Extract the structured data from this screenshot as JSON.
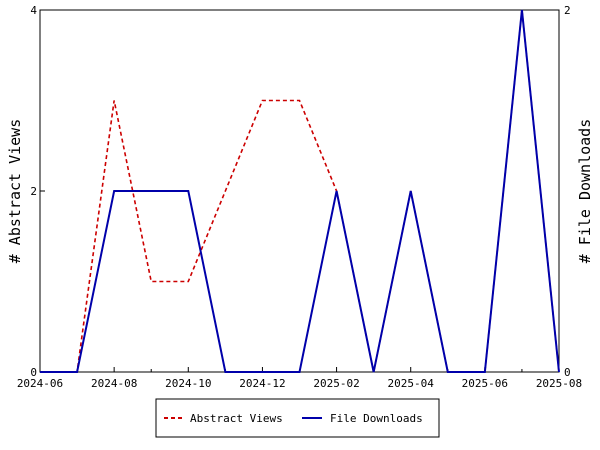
{
  "chart_data": {
    "type": "line",
    "x": [
      "2024-06",
      "2024-07",
      "2024-08",
      "2024-09",
      "2024-10",
      "2024-11",
      "2024-12",
      "2025-01",
      "2025-02",
      "2025-03",
      "2025-04",
      "2025-05",
      "2025-06",
      "2025-07",
      "2025-08"
    ],
    "x_tick_labels": [
      "2024-06",
      "2024-08",
      "2024-10",
      "2024-12",
      "2025-02",
      "2025-04",
      "2025-06",
      "2025-08"
    ],
    "ylabel_left": "# Abstract Views",
    "ylabel_right": "# File Downloads",
    "ylim_left": [
      0,
      4
    ],
    "ylim_right": [
      0,
      2
    ],
    "y_ticks_left": [
      "0",
      "2",
      "4"
    ],
    "y_ticks_right": [
      "0",
      "2"
    ],
    "grid": false,
    "legend_position": "bottom",
    "series": [
      {
        "name": "Abstract Views",
        "axis": "left",
        "color": "#cc0000",
        "style": "dashed",
        "values": [
          0,
          0,
          3,
          1,
          1,
          2,
          3,
          3,
          2,
          0,
          2,
          0,
          0,
          4,
          0
        ]
      },
      {
        "name": "File Downloads",
        "axis": "right",
        "color": "#0000aa",
        "style": "solid",
        "values": [
          0,
          0,
          1,
          1,
          1,
          0,
          0,
          0,
          1,
          0,
          1,
          0,
          0,
          2,
          0
        ]
      }
    ]
  }
}
